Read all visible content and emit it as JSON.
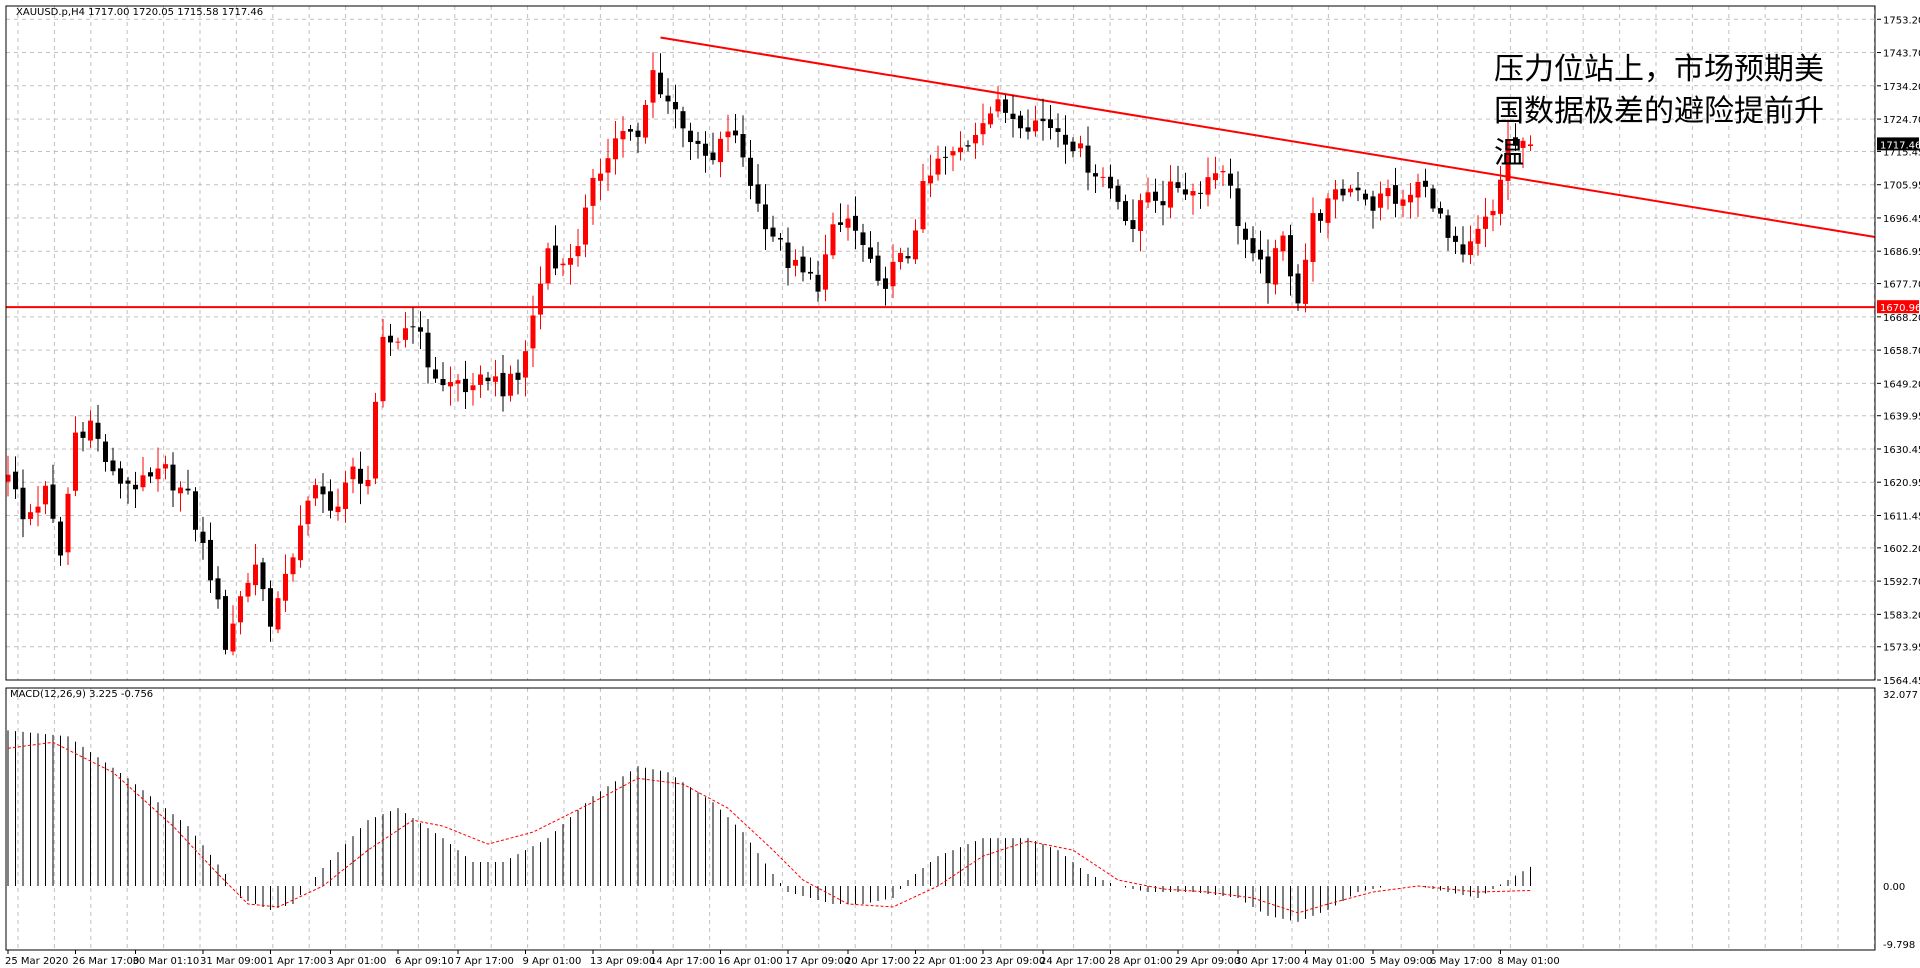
{
  "header": {
    "symbol_line": "XAUUSD.p,H4  1717.00 1720.05 1715.58 1717.46",
    "macd_line": "MACD(12,26,9) 3.225 -0.756"
  },
  "annotation": {
    "lines": [
      "压力位站上，市场预期美",
      "国数据极差的避险提前升",
      "温"
    ]
  },
  "colors": {
    "bull": "#ff0000",
    "bear": "#000000",
    "trendline": "#ff0000",
    "grid": "#c0c0c0",
    "price_tag_bg": "#000000",
    "level_tag_bg": "#ff0000"
  },
  "chart_data": [
    {
      "type": "candlestick",
      "symbol": "XAUUSD.p",
      "timeframe": "H4",
      "ohlc_current": {
        "open": 1717.0,
        "high": 1720.05,
        "low": 1715.58,
        "close": 1717.46
      },
      "current_price_label": "1717.46",
      "horizontal_level": {
        "value": 1670.96,
        "label": "1670.96"
      },
      "trendline": {
        "from": {
          "candle": 87,
          "price": 1748.0
        },
        "to": {
          "candle": 252,
          "price": 1691.0
        }
      },
      "ylim": [
        1564.45,
        1757.0
      ],
      "y_ticks": [
        "1753.20",
        "1743.70",
        "1734.20",
        "1724.70",
        "1715.45",
        "1705.95",
        "1696.45",
        "1686.95",
        "1677.70",
        "1668.20",
        "1658.70",
        "1649.20",
        "1639.95",
        "1630.45",
        "1620.95",
        "1611.45",
        "1602.20",
        "1592.70",
        "1583.20",
        "1573.95",
        "1564.45"
      ],
      "x_ticks": [
        {
          "candle": 0,
          "label": "25 Mar 2020"
        },
        {
          "candle": 9,
          "label": "26 Mar 17:00"
        },
        {
          "candle": 17,
          "label": "30 Mar 01:10"
        },
        {
          "candle": 26,
          "label": "31 Mar 09:00"
        },
        {
          "candle": 35,
          "label": "1 Apr 17:00"
        },
        {
          "candle": 43,
          "label": "3 Apr 01:00"
        },
        {
          "candle": 52,
          "label": "6 Apr 09:10"
        },
        {
          "candle": 60,
          "label": "7 Apr 17:00"
        },
        {
          "candle": 69,
          "label": "9 Apr 01:00"
        },
        {
          "candle": 78,
          "label": "13 Apr 09:00"
        },
        {
          "candle": 86,
          "label": "14 Apr 17:00"
        },
        {
          "candle": 95,
          "label": "16 Apr 01:00"
        },
        {
          "candle": 104,
          "label": "17 Apr 09:00"
        },
        {
          "candle": 112,
          "label": "20 Apr 17:00"
        },
        {
          "candle": 121,
          "label": "22 Apr 01:00"
        },
        {
          "candle": 130,
          "label": "23 Apr 09:00"
        },
        {
          "candle": 138,
          "label": "24 Apr 17:00"
        },
        {
          "candle": 147,
          "label": "28 Apr 01:00"
        },
        {
          "candle": 156,
          "label": "29 Apr 09:00"
        },
        {
          "candle": 164,
          "label": "30 Apr 17:00"
        },
        {
          "candle": 173,
          "label": "4 May 01:00"
        },
        {
          "candle": 182,
          "label": "5 May 09:00"
        },
        {
          "candle": 190,
          "label": "6 May 17:00"
        },
        {
          "candle": 199,
          "label": "8 May 01:00"
        }
      ],
      "close_anchors": [
        [
          0,
          1625
        ],
        [
          2,
          1610
        ],
        [
          5,
          1618
        ],
        [
          7,
          1600
        ],
        [
          9,
          1635
        ],
        [
          11,
          1638
        ],
        [
          14,
          1622
        ],
        [
          18,
          1620
        ],
        [
          21,
          1624
        ],
        [
          24,
          1616
        ],
        [
          27,
          1595
        ],
        [
          29,
          1575
        ],
        [
          31,
          1588
        ],
        [
          33,
          1598
        ],
        [
          35,
          1582
        ],
        [
          37,
          1592
        ],
        [
          39,
          1610
        ],
        [
          41,
          1618
        ],
        [
          44,
          1614
        ],
        [
          46,
          1624
        ],
        [
          48,
          1622
        ],
        [
          50,
          1660
        ],
        [
          52,
          1662
        ],
        [
          54,
          1668
        ],
        [
          56,
          1655
        ],
        [
          58,
          1648
        ],
        [
          60,
          1650
        ],
        [
          62,
          1646
        ],
        [
          64,
          1652
        ],
        [
          66,
          1648
        ],
        [
          68,
          1650
        ],
        [
          70,
          1668
        ],
        [
          72,
          1688
        ],
        [
          74,
          1682
        ],
        [
          76,
          1690
        ],
        [
          78,
          1705
        ],
        [
          80,
          1716
        ],
        [
          82,
          1722
        ],
        [
          84,
          1718
        ],
        [
          86,
          1738
        ],
        [
          88,
          1730
        ],
        [
          90,
          1724
        ],
        [
          92,
          1715
        ],
        [
          94,
          1712
        ],
        [
          96,
          1722
        ],
        [
          98,
          1714
        ],
        [
          100,
          1700
        ],
        [
          102,
          1692
        ],
        [
          104,
          1684
        ],
        [
          106,
          1680
        ],
        [
          108,
          1678
        ],
        [
          110,
          1692
        ],
        [
          112,
          1696
        ],
        [
          114,
          1688
        ],
        [
          116,
          1676
        ],
        [
          118,
          1682
        ],
        [
          120,
          1686
        ],
        [
          122,
          1704
        ],
        [
          124,
          1712
        ],
        [
          126,
          1714
        ],
        [
          128,
          1718
        ],
        [
          130,
          1726
        ],
        [
          132,
          1728
        ],
        [
          134,
          1726
        ],
        [
          136,
          1724
        ],
        [
          138,
          1724
        ],
        [
          140,
          1722
        ],
        [
          142,
          1718
        ],
        [
          144,
          1712
        ],
        [
          146,
          1708
        ],
        [
          148,
          1702
        ],
        [
          150,
          1694
        ],
        [
          152,
          1704
        ],
        [
          154,
          1702
        ],
        [
          156,
          1706
        ],
        [
          158,
          1704
        ],
        [
          160,
          1708
        ],
        [
          162,
          1712
        ],
        [
          164,
          1696
        ],
        [
          166,
          1684
        ],
        [
          168,
          1680
        ],
        [
          170,
          1690
        ],
        [
          172,
          1674
        ],
        [
          174,
          1696
        ],
        [
          176,
          1700
        ],
        [
          178,
          1704
        ],
        [
          180,
          1706
        ],
        [
          182,
          1700
        ],
        [
          184,
          1704
        ],
        [
          186,
          1700
        ],
        [
          188,
          1706
        ],
        [
          190,
          1702
        ],
        [
          192,
          1690
        ],
        [
          194,
          1684
        ],
        [
          196,
          1692
        ],
        [
          198,
          1698
        ],
        [
          200,
          1718
        ],
        [
          202,
          1716
        ],
        [
          203,
          1717.46
        ]
      ]
    },
    {
      "type": "bar",
      "name": "MACD(12,26,9)",
      "main_value": 3.225,
      "signal_value": -0.756,
      "ylim": [
        -9.798,
        32.077
      ],
      "y_ticks": [
        "32.077",
        "0.00",
        "-9.798"
      ],
      "hist_anchors": [
        [
          0,
          26
        ],
        [
          8,
          25
        ],
        [
          16,
          18
        ],
        [
          24,
          10
        ],
        [
          29,
          2
        ],
        [
          31,
          -2
        ],
        [
          35,
          -4
        ],
        [
          38,
          -3
        ],
        [
          42,
          3
        ],
        [
          48,
          11
        ],
        [
          52,
          13
        ],
        [
          58,
          8
        ],
        [
          62,
          4
        ],
        [
          66,
          4
        ],
        [
          72,
          8
        ],
        [
          78,
          15
        ],
        [
          84,
          20
        ],
        [
          88,
          19
        ],
        [
          94,
          14
        ],
        [
          98,
          9
        ],
        [
          102,
          2
        ],
        [
          104,
          -1
        ],
        [
          110,
          -3
        ],
        [
          114,
          -3
        ],
        [
          118,
          -2
        ],
        [
          120,
          1
        ],
        [
          124,
          5
        ],
        [
          130,
          8
        ],
        [
          136,
          8
        ],
        [
          140,
          6
        ],
        [
          144,
          2
        ],
        [
          148,
          0
        ],
        [
          152,
          -1
        ],
        [
          158,
          -1
        ],
        [
          164,
          -2
        ],
        [
          168,
          -5
        ],
        [
          172,
          -6
        ],
        [
          176,
          -4
        ],
        [
          180,
          -1
        ],
        [
          184,
          0
        ],
        [
          188,
          0
        ],
        [
          192,
          -1
        ],
        [
          196,
          -2
        ],
        [
          200,
          1
        ],
        [
          203,
          3.2
        ]
      ],
      "signal_anchors": [
        [
          0,
          23
        ],
        [
          6,
          24
        ],
        [
          14,
          19
        ],
        [
          22,
          10
        ],
        [
          28,
          2
        ],
        [
          32,
          -3
        ],
        [
          36,
          -3.5
        ],
        [
          42,
          0
        ],
        [
          48,
          6
        ],
        [
          54,
          11
        ],
        [
          58,
          10
        ],
        [
          64,
          7
        ],
        [
          70,
          9
        ],
        [
          78,
          14
        ],
        [
          84,
          18
        ],
        [
          90,
          17
        ],
        [
          96,
          13
        ],
        [
          102,
          6
        ],
        [
          106,
          1
        ],
        [
          112,
          -3
        ],
        [
          118,
          -3.5
        ],
        [
          124,
          0
        ],
        [
          130,
          5
        ],
        [
          136,
          7.5
        ],
        [
          142,
          6
        ],
        [
          148,
          1
        ],
        [
          154,
          -0.5
        ],
        [
          160,
          -1
        ],
        [
          166,
          -2
        ],
        [
          172,
          -4.5
        ],
        [
          176,
          -3
        ],
        [
          182,
          -1
        ],
        [
          188,
          0
        ],
        [
          196,
          -1
        ],
        [
          203,
          -0.756
        ]
      ]
    }
  ]
}
